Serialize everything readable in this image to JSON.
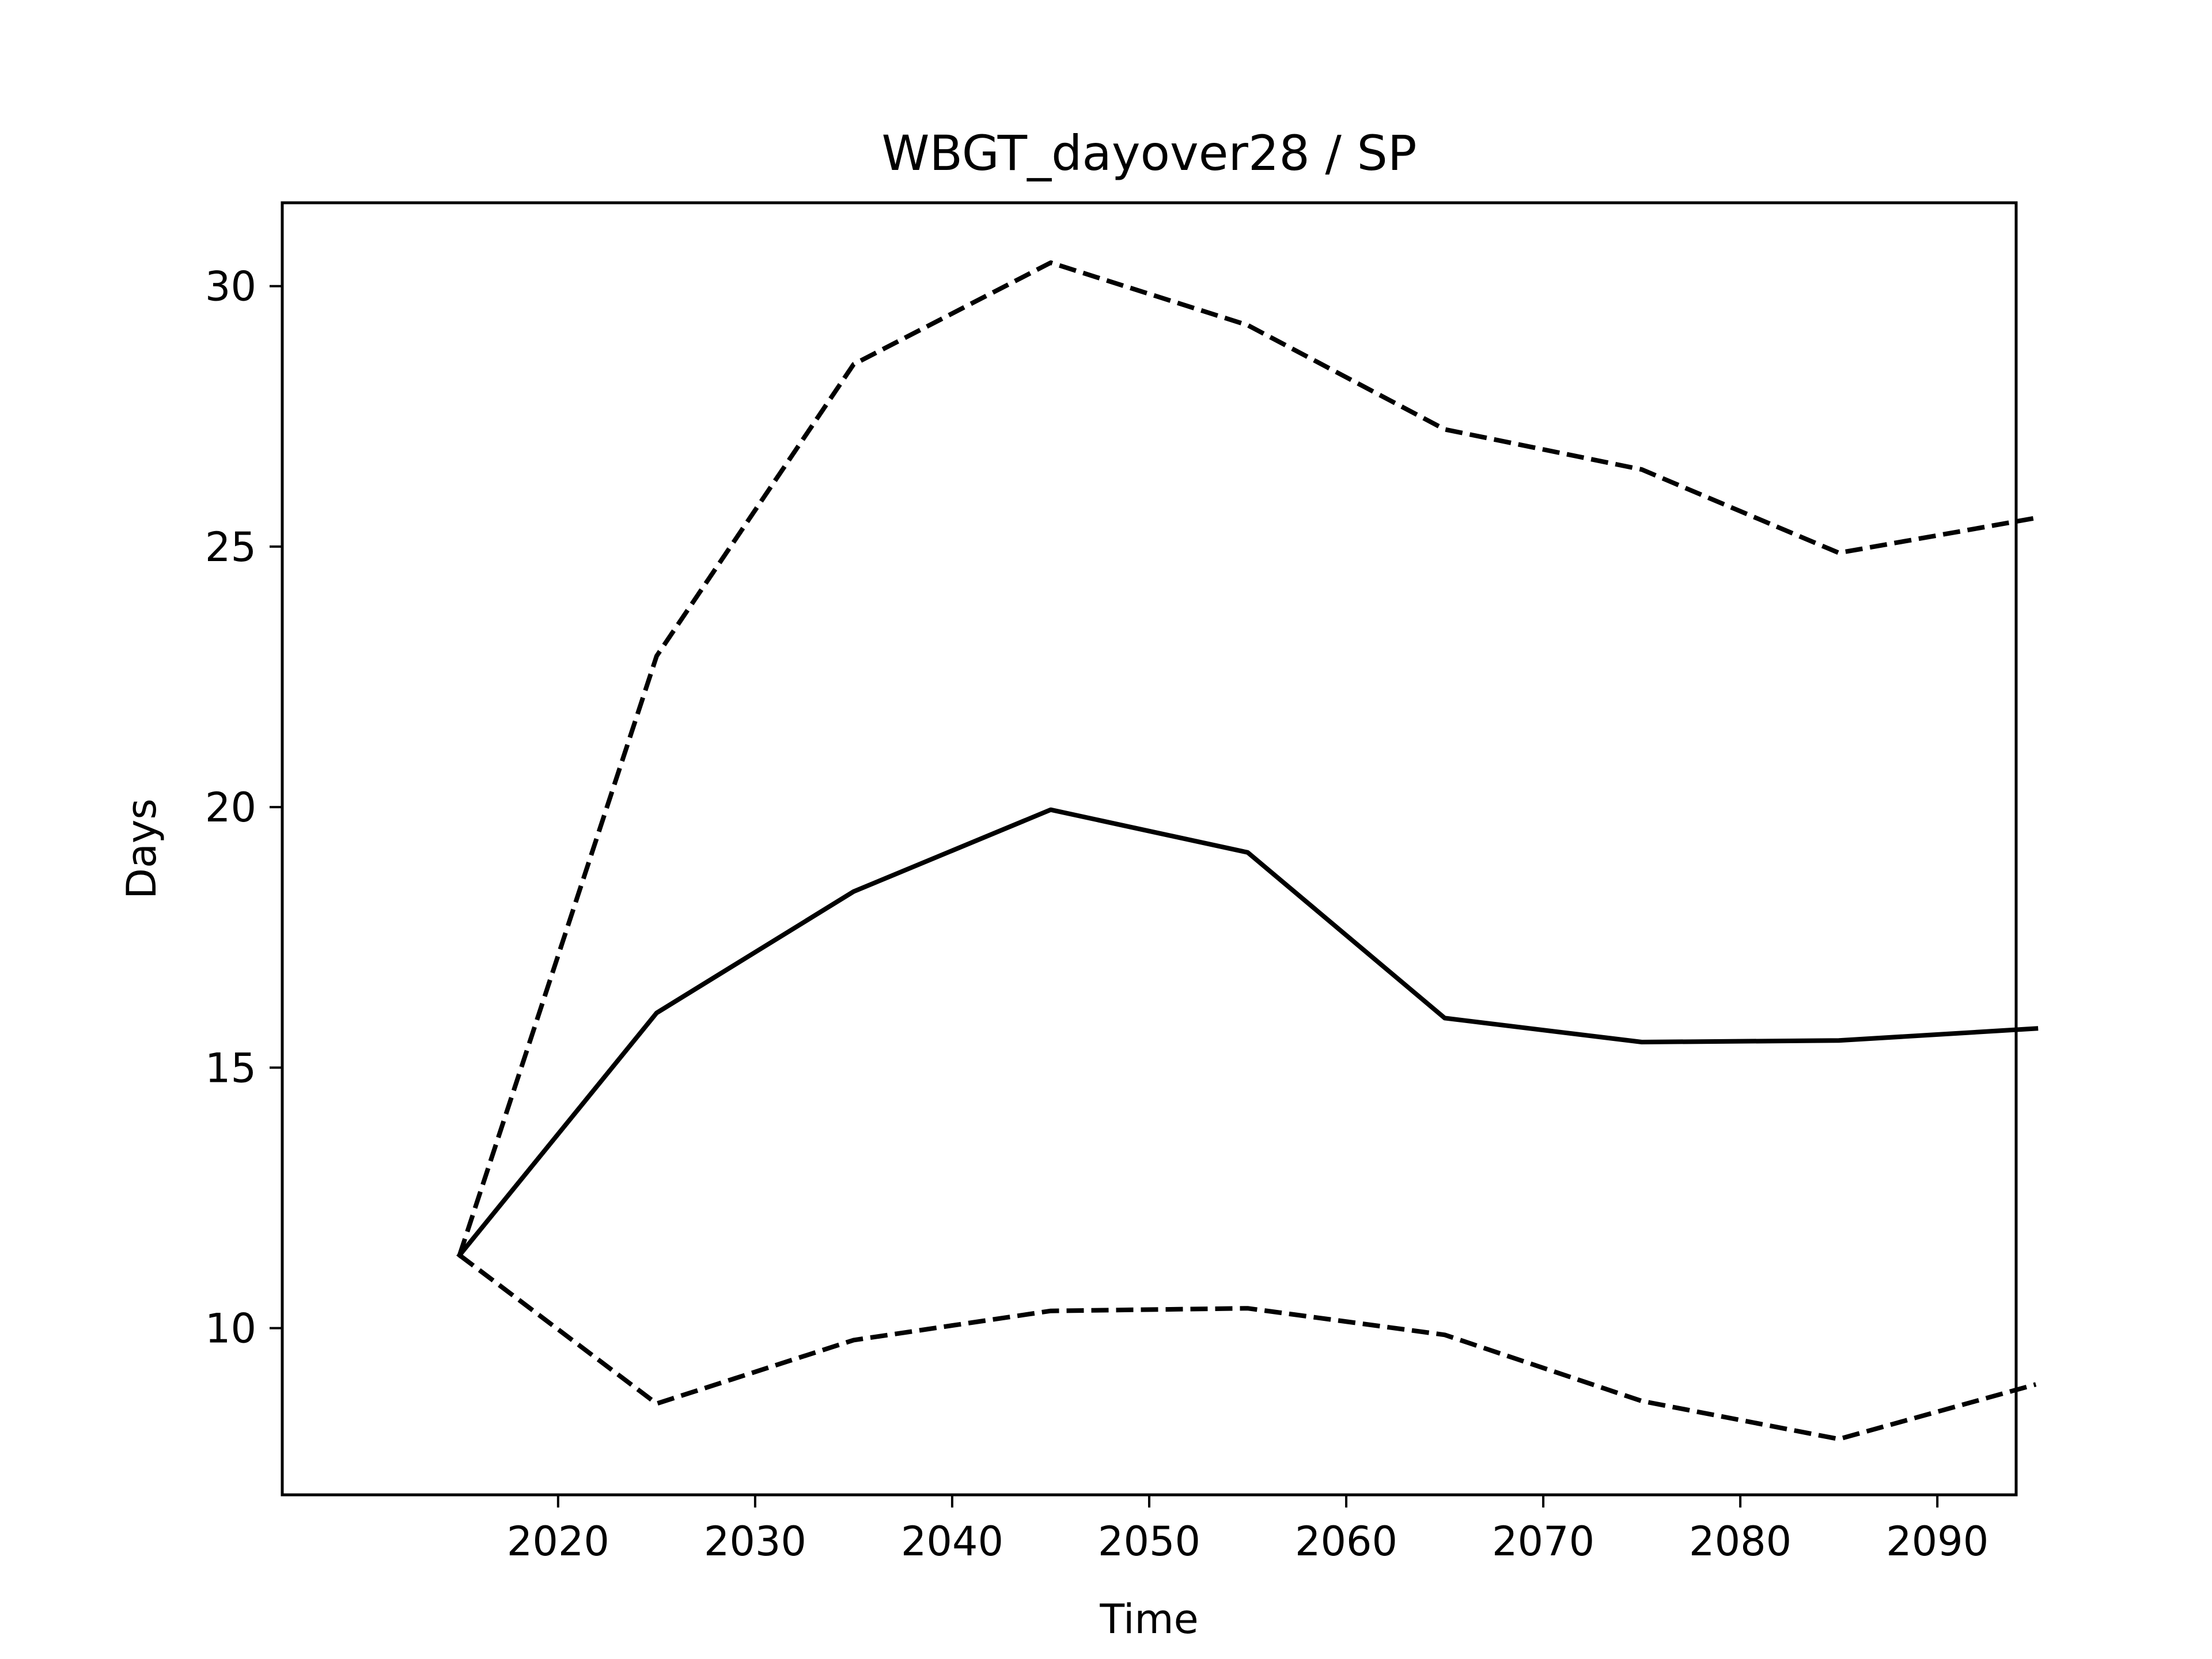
{
  "chart_data": {
    "type": "line",
    "title": "WBGT_dayover28 / SP",
    "xlabel": "Time",
    "ylabel": "Days",
    "x": [
      2015,
      2025,
      2035,
      2045,
      2055,
      2065,
      2075,
      2085,
      2095
    ],
    "xlim": [
      2006,
      2094
    ],
    "ylim": [
      6.8,
      31.6
    ],
    "xticks": [
      2020,
      2030,
      2040,
      2050,
      2060,
      2070,
      2080,
      2090
    ],
    "yticks": [
      10,
      15,
      20,
      25,
      30
    ],
    "grid": false,
    "series": [
      {
        "style": "solid",
        "values": [
          11.4,
          16.05,
          18.38,
          19.95,
          19.13,
          15.95,
          15.49,
          15.52,
          15.75
        ]
      },
      {
        "style": "dashed",
        "values": [
          11.4,
          22.9,
          28.5,
          30.45,
          29.25,
          27.25,
          26.48,
          24.88,
          25.55
        ]
      },
      {
        "style": "dashed",
        "values": [
          11.4,
          8.55,
          9.77,
          10.33,
          10.38,
          9.87,
          8.6,
          7.87,
          8.92
        ]
      }
    ]
  }
}
